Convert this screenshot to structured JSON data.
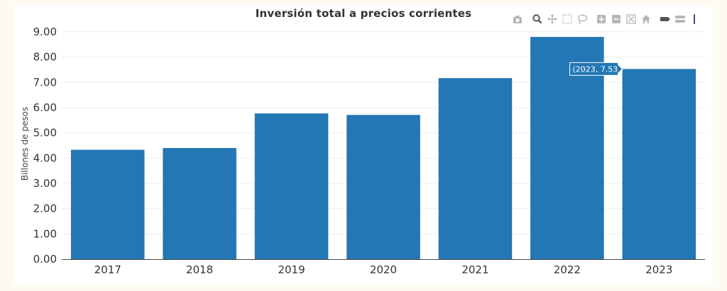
{
  "chart_data": {
    "type": "bar",
    "title": "Inversión total a precios corrientes",
    "xlabel": "",
    "ylabel": "Billones de pesos",
    "categories": [
      "2017",
      "2018",
      "2019",
      "2020",
      "2021",
      "2022",
      "2023"
    ],
    "values": [
      4.33,
      4.4,
      5.77,
      5.71,
      7.17,
      8.8,
      7.53
    ],
    "ylim": [
      0,
      9
    ],
    "yticks": [
      "0.00",
      "1.00",
      "2.00",
      "3.00",
      "4.00",
      "5.00",
      "6.00",
      "7.00",
      "8.00",
      "9.00"
    ],
    "grid": true,
    "bar_color": "#2277b4",
    "hover": {
      "label": "(2023, 7.53 )",
      "category": "2023",
      "value": 7.53
    }
  },
  "modebar": {
    "icons": [
      "camera-icon",
      "zoom-icon",
      "pan-icon",
      "box-select-icon",
      "lasso-select-icon",
      "zoom-in-icon",
      "zoom-out-icon",
      "autoscale-icon",
      "reset-axes-icon",
      "spike-lines-icon",
      "compare-hover-icon",
      "plotly-logo-icon"
    ],
    "color": "#b6b6b6",
    "active_color": "#555555",
    "logo_color": "#3b4a6b"
  }
}
